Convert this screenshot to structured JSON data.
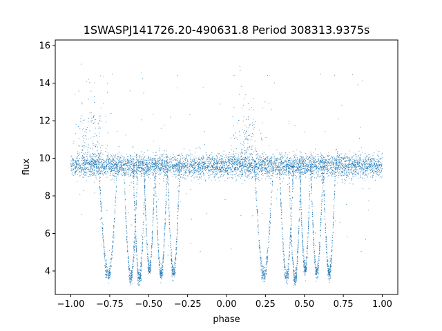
{
  "chart_data": {
    "type": "scatter",
    "title": "1SWASPJ141726.20-490631.8 Period 308313.9375s",
    "xlabel": "phase",
    "ylabel": "flux",
    "xlim": [
      -1.1,
      1.1
    ],
    "ylim": [
      2.75,
      16.3
    ],
    "xticks": [
      -1.0,
      -0.75,
      -0.5,
      -0.25,
      0.0,
      0.25,
      0.5,
      0.75,
      1.0
    ],
    "xtick_labels": [
      "−1.00",
      "−0.75",
      "−0.50",
      "−0.25",
      "0.00",
      "0.25",
      "0.50",
      "0.75",
      "1.00"
    ],
    "yticks": [
      4,
      6,
      8,
      10,
      12,
      14,
      16
    ],
    "ytick_labels": [
      "4",
      "6",
      "8",
      "10",
      "12",
      "14",
      "16"
    ],
    "grid": false,
    "legend": "none",
    "marker_color": "#1f77b4",
    "series": [
      {
        "baseline_flux": 9.6,
        "scatter_sigma": 0.3,
        "dip_tracks": [
          {
            "x_start": -0.82,
            "x_end": -0.7,
            "flux_min": 3.8
          },
          {
            "x_start": -0.66,
            "x_end": -0.57,
            "flux_min": 3.7
          },
          {
            "x_start": -0.6,
            "x_end": -0.52,
            "flux_min": 3.6
          },
          {
            "x_start": -0.53,
            "x_end": -0.46,
            "flux_min": 4.1
          },
          {
            "x_start": -0.46,
            "x_end": -0.38,
            "flux_min": 3.9
          },
          {
            "x_start": -0.38,
            "x_end": -0.3,
            "flux_min": 3.9
          },
          {
            "x_start": 0.18,
            "x_end": 0.3,
            "flux_min": 3.8
          },
          {
            "x_start": 0.34,
            "x_end": 0.43,
            "flux_min": 3.7
          },
          {
            "x_start": 0.4,
            "x_end": 0.48,
            "flux_min": 3.6
          },
          {
            "x_start": 0.47,
            "x_end": 0.54,
            "flux_min": 4.1
          },
          {
            "x_start": 0.54,
            "x_end": 0.62,
            "flux_min": 3.9
          },
          {
            "x_start": 0.62,
            "x_end": 0.7,
            "flux_min": 3.9
          }
        ],
        "flare_regions": [
          {
            "x_center": -0.87,
            "flux_max": 13.4
          },
          {
            "x_center": 0.13,
            "flux_max": 13.4
          }
        ]
      }
    ]
  }
}
